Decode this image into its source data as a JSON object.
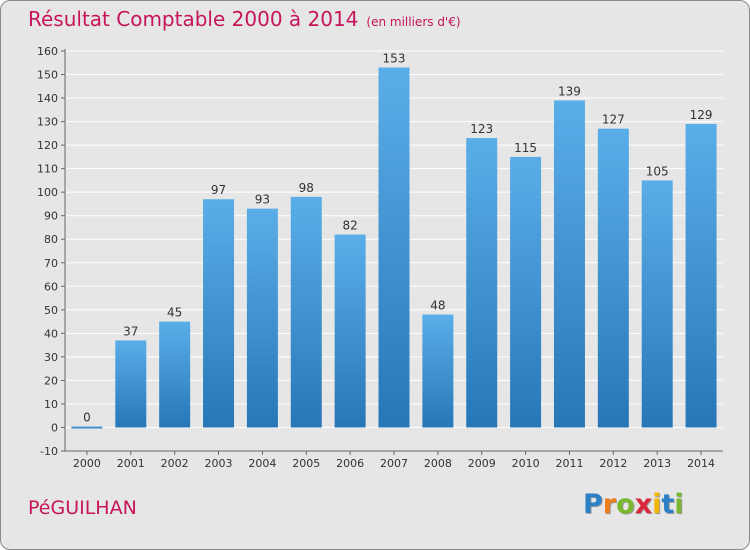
{
  "chart_data": {
    "type": "bar",
    "title": "Résultat Comptable 2000 à 2014",
    "subtitle": "(en milliers d'€)",
    "categories": [
      "2000",
      "2001",
      "2002",
      "2003",
      "2004",
      "2005",
      "2006",
      "2007",
      "2008",
      "2009",
      "2010",
      "2011",
      "2012",
      "2013",
      "2014"
    ],
    "values": [
      0,
      37,
      45,
      97,
      93,
      98,
      82,
      153,
      48,
      123,
      115,
      139,
      127,
      105,
      129
    ],
    "data_labels": [
      "0",
      "37",
      "45",
      "97",
      "93",
      "98",
      "82",
      "153",
      "48",
      "123",
      "115",
      "139",
      "127",
      "105",
      "129"
    ],
    "ylim": [
      -10,
      160
    ],
    "yticks": [
      -10,
      0,
      10,
      20,
      30,
      40,
      50,
      60,
      70,
      80,
      90,
      100,
      110,
      120,
      130,
      140,
      150,
      160
    ],
    "xlabel": "",
    "ylabel": "",
    "grid": true,
    "legend": "none",
    "bar_color_top": "#5aaee8",
    "bar_color_bottom": "#2777b8"
  },
  "footer": {
    "commune": "PéGUILHAN"
  },
  "logo": {
    "letters": [
      "P",
      "r",
      "o",
      "x",
      "i",
      "t",
      "i"
    ],
    "colors": [
      "#2b7fc6",
      "#ef7d1a",
      "#7ab82e",
      "#d9263d",
      "#f4b400",
      "#2b7fc6",
      "#7ab82e"
    ]
  },
  "colors": {
    "title": "#c8145a",
    "background": "#e6e6e6"
  }
}
